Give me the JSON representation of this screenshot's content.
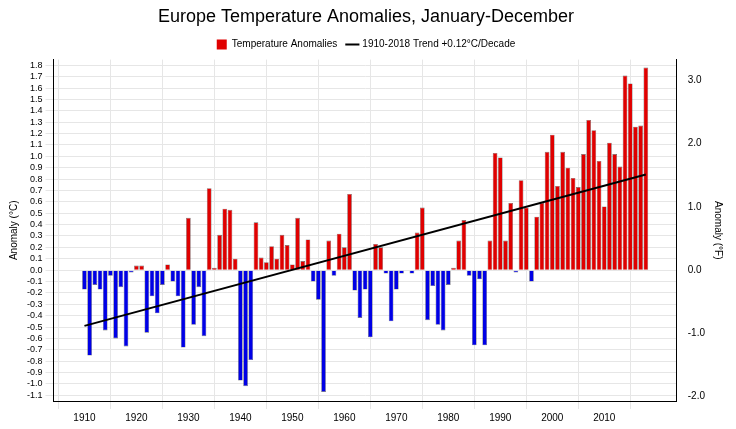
{
  "chart_data": {
    "type": "bar",
    "title": "Europe Temperature Anomalies, January-December",
    "y_label": "Anomaly (°C)",
    "y2_label": "Anomaly (°F)",
    "x": [
      1910,
      1911,
      1912,
      1913,
      1914,
      1915,
      1916,
      1917,
      1918,
      1919,
      1920,
      1921,
      1922,
      1923,
      1924,
      1925,
      1926,
      1927,
      1928,
      1929,
      1930,
      1931,
      1932,
      1933,
      1934,
      1935,
      1936,
      1937,
      1938,
      1939,
      1940,
      1941,
      1942,
      1943,
      1944,
      1945,
      1946,
      1947,
      1948,
      1949,
      1950,
      1951,
      1952,
      1953,
      1954,
      1955,
      1956,
      1957,
      1958,
      1959,
      1960,
      1961,
      1962,
      1963,
      1964,
      1965,
      1966,
      1967,
      1968,
      1969,
      1970,
      1971,
      1972,
      1973,
      1974,
      1975,
      1976,
      1977,
      1978,
      1979,
      1980,
      1981,
      1982,
      1983,
      1984,
      1985,
      1986,
      1987,
      1988,
      1989,
      1990,
      1991,
      1992,
      1993,
      1994,
      1995,
      1996,
      1997,
      1998,
      1999,
      2000,
      2001,
      2002,
      2003,
      2004,
      2005,
      2006,
      2007,
      2008,
      2009,
      2010,
      2011,
      2012,
      2013,
      2014,
      2015,
      2016,
      2017,
      2018
    ],
    "series": [
      {
        "name": "Temperature Anomalies",
        "type": "bar",
        "values": [
          -0.17,
          -0.75,
          -0.13,
          -0.17,
          -0.53,
          -0.05,
          -0.6,
          -0.15,
          -0.67,
          -0.02,
          0.04,
          0.04,
          -0.55,
          -0.23,
          -0.38,
          -0.13,
          0.05,
          -0.1,
          -0.23,
          -0.68,
          0.46,
          -0.48,
          -0.15,
          -0.58,
          0.72,
          0.02,
          0.31,
          0.54,
          0.53,
          0.1,
          -0.97,
          -1.02,
          -0.79,
          0.42,
          0.11,
          0.07,
          0.21,
          0.1,
          0.31,
          0.22,
          0.05,
          0.46,
          0.08,
          0.27,
          -0.1,
          -0.26,
          -1.07,
          0.26,
          -0.05,
          0.32,
          0.2,
          0.67,
          -0.18,
          -0.42,
          -0.17,
          -0.59,
          0.23,
          0.2,
          -0.03,
          -0.45,
          -0.17,
          -0.03,
          0.0,
          -0.03,
          0.33,
          0.55,
          -0.44,
          -0.14,
          -0.48,
          -0.53,
          -0.13,
          0.02,
          0.26,
          0.44,
          -0.05,
          -0.66,
          -0.08,
          -0.66,
          0.26,
          1.03,
          0.99,
          0.26,
          0.59,
          -0.02,
          0.79,
          0.55,
          -0.1,
          0.47,
          0.59,
          1.04,
          1.19,
          0.74,
          1.04,
          0.9,
          0.81,
          0.73,
          1.02,
          1.32,
          1.23,
          0.96,
          0.56,
          1.12,
          1.02,
          0.91,
          1.71,
          1.64,
          1.26,
          1.27,
          1.78
        ],
        "colors": [
          "#0000e6",
          "#0000e6",
          "#0000e6",
          "#0000e6",
          "#0000e6",
          "#0000e6",
          "#0000e6",
          "#0000e6",
          "#0000e6",
          "#0000e6",
          "#e00000",
          "#e00000",
          "#0000e6",
          "#0000e6",
          "#0000e6",
          "#0000e6",
          "#e00000",
          "#0000e6",
          "#0000e6",
          "#0000e6",
          "#e00000",
          "#0000e6",
          "#0000e6",
          "#0000e6",
          "#e00000",
          "#e00000",
          "#e00000",
          "#e00000",
          "#e00000",
          "#e00000",
          "#0000e6",
          "#0000e6",
          "#0000e6",
          "#e00000",
          "#e00000",
          "#e00000",
          "#e00000",
          "#e00000",
          "#e00000",
          "#e00000",
          "#e00000",
          "#e00000",
          "#e00000",
          "#e00000",
          "#0000e6",
          "#0000e6",
          "#0000e6",
          "#e00000",
          "#0000e6",
          "#e00000",
          "#e00000",
          "#e00000",
          "#0000e6",
          "#0000e6",
          "#0000e6",
          "#0000e6",
          "#e00000",
          "#e00000",
          "#0000e6",
          "#0000e6",
          "#0000e6",
          "#0000e6",
          "#e00000",
          "#0000e6",
          "#e00000",
          "#e00000",
          "#0000e6",
          "#0000e6",
          "#0000e6",
          "#0000e6",
          "#0000e6",
          "#e00000",
          "#e00000",
          "#e00000",
          "#0000e6",
          "#0000e6",
          "#0000e6",
          "#0000e6",
          "#e00000",
          "#e00000",
          "#e00000",
          "#e00000",
          "#e00000",
          "#0000e6",
          "#e00000",
          "#e00000",
          "#0000e6",
          "#e00000",
          "#e00000",
          "#e00000",
          "#e00000",
          "#e00000",
          "#e00000",
          "#e00000",
          "#e00000",
          "#e00000",
          "#e00000",
          "#e00000",
          "#e00000",
          "#e00000",
          "#e00000",
          "#e00000",
          "#e00000",
          "#e00000",
          "#e00000",
          "#e00000",
          "#e00000",
          "#e00000",
          "#e00000"
        ]
      },
      {
        "name": "1910-2018 Trend +0.12°C/Decade",
        "type": "line",
        "color": "#000000",
        "line_style": "solid",
        "x": [
          1910,
          2018
        ],
        "values": [
          -0.49,
          0.84
        ]
      }
    ],
    "xlim": [
      1909.5,
      2018.5
    ],
    "xticks": [
      1910,
      1920,
      1930,
      1940,
      1950,
      1960,
      1970,
      1980,
      1990,
      2000,
      2010
    ],
    "ylim": [
      -1.15,
      1.85
    ],
    "yticks": [
      -1.1,
      {
        "value": -1.0,
        "label": "-1.0"
      },
      -0.9,
      -0.8,
      -0.7,
      -0.6,
      -0.5,
      -0.4,
      -0.3,
      -0.2,
      -0.1,
      {
        "value": 0.0,
        "label": "0.0"
      },
      0.1,
      0.2,
      0.3,
      0.4,
      0.5,
      0.6,
      0.7,
      0.8,
      0.9,
      {
        "value": 1.0,
        "label": "1.0"
      },
      1.1,
      1.2,
      1.3,
      1.4,
      1.5,
      1.6,
      1.7,
      1.8
    ],
    "y2lim": [
      -2.07,
      3.33
    ],
    "y2ticks": [
      {
        "value": -2.0,
        "label": "-2.0"
      },
      {
        "value": -1.0,
        "label": "-1.0"
      },
      {
        "value": 0.0,
        "label": "0.0"
      },
      {
        "value": 1.0,
        "label": "1.0"
      },
      {
        "value": 2.0,
        "label": "2.0"
      },
      {
        "value": 3.0,
        "label": "3.0"
      }
    ],
    "grid": true,
    "legend": "top"
  }
}
